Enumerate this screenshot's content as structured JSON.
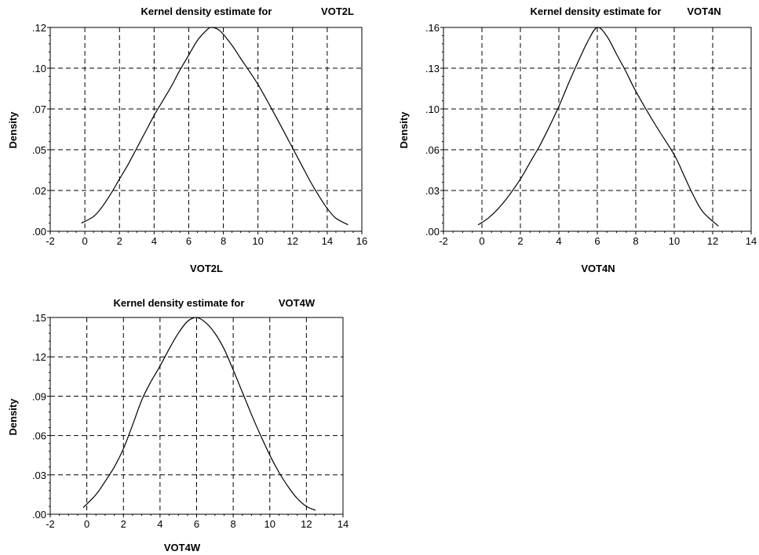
{
  "chart_data": [
    {
      "type": "line",
      "title_prefix": "Kernel density estimate for",
      "title_var": "VOT2L",
      "xlabel": "VOT2L",
      "ylabel": "Density",
      "xlim": [
        -2,
        16
      ],
      "ylim": [
        0,
        0.125
      ],
      "xticks": [
        -2,
        0,
        2,
        4,
        6,
        8,
        10,
        12,
        14,
        16
      ],
      "yticks": [
        0,
        0.025,
        0.05,
        0.075,
        0.1,
        0.125
      ],
      "ytick_labels": [
        ".00",
        ".02",
        ".05",
        ".07",
        ".10",
        ".12"
      ],
      "grid": true,
      "series": [
        {
          "x": [
            -0.2,
            0.5,
            1.0,
            1.5,
            2.0,
            2.5,
            3.0,
            3.5,
            4.0,
            4.5,
            5.0,
            5.5,
            6.0,
            6.5,
            7.0,
            7.3,
            7.8,
            8.5,
            9.0,
            10.0,
            11.0,
            12.0,
            12.5,
            13.0,
            13.5,
            14.0,
            14.5,
            15.2
          ],
          "y": [
            0.005,
            0.009,
            0.015,
            0.023,
            0.032,
            0.041,
            0.051,
            0.061,
            0.071,
            0.08,
            0.089,
            0.099,
            0.108,
            0.117,
            0.123,
            0.125,
            0.123,
            0.114,
            0.106,
            0.09,
            0.071,
            0.051,
            0.041,
            0.031,
            0.022,
            0.014,
            0.008,
            0.004
          ]
        }
      ]
    },
    {
      "type": "line",
      "title_prefix": "Kernel density estimate for",
      "title_var": "VOT4N",
      "xlabel": "VOT4N",
      "ylabel": "Density",
      "xlim": [
        -2,
        14
      ],
      "ylim": [
        0,
        0.16
      ],
      "xticks": [
        -2,
        0,
        2,
        4,
        6,
        8,
        10,
        12,
        14
      ],
      "yticks": [
        0,
        0.032,
        0.064,
        0.096,
        0.128,
        0.16
      ],
      "ytick_labels": [
        ".00",
        ".03",
        ".06",
        ".10",
        ".13",
        ".16"
      ],
      "grid": true,
      "series": [
        {
          "x": [
            -0.2,
            0.3,
            0.8,
            1.3,
            2.0,
            2.5,
            3.0,
            3.5,
            4.0,
            4.5,
            5.0,
            5.5,
            6.0,
            6.5,
            7.0,
            7.5,
            8.0,
            9.0,
            10.0,
            10.5,
            11.0,
            11.5,
            12.3
          ],
          "y": [
            0.005,
            0.01,
            0.017,
            0.026,
            0.041,
            0.054,
            0.067,
            0.082,
            0.098,
            0.116,
            0.133,
            0.149,
            0.16,
            0.153,
            0.139,
            0.125,
            0.11,
            0.084,
            0.06,
            0.044,
            0.028,
            0.015,
            0.004
          ]
        }
      ]
    },
    {
      "type": "line",
      "title_prefix": "Kernel density estimate for",
      "title_var": "VOT4W",
      "xlabel": "VOT4W",
      "ylabel": "Density",
      "xlim": [
        -2,
        14
      ],
      "ylim": [
        0,
        0.15
      ],
      "xticks": [
        -2,
        0,
        2,
        4,
        6,
        8,
        10,
        12,
        14
      ],
      "yticks": [
        0,
        0.03,
        0.06,
        0.09,
        0.12,
        0.15
      ],
      "ytick_labels": [
        ".00",
        ".03",
        ".06",
        ".09",
        ".12",
        ".15"
      ],
      "grid": true,
      "series": [
        {
          "x": [
            -0.2,
            0.5,
            1.0,
            1.5,
            2.0,
            2.5,
            3.0,
            3.5,
            4.0,
            4.5,
            5.0,
            5.5,
            6.0,
            6.5,
            7.0,
            7.5,
            8.0,
            8.5,
            9.0,
            9.5,
            10.0,
            10.5,
            11.0,
            11.5,
            12.0,
            12.5
          ],
          "y": [
            0.005,
            0.015,
            0.025,
            0.036,
            0.05,
            0.068,
            0.087,
            0.101,
            0.113,
            0.126,
            0.138,
            0.147,
            0.15,
            0.146,
            0.138,
            0.126,
            0.11,
            0.093,
            0.076,
            0.06,
            0.045,
            0.032,
            0.021,
            0.012,
            0.006,
            0.003
          ]
        }
      ]
    }
  ]
}
